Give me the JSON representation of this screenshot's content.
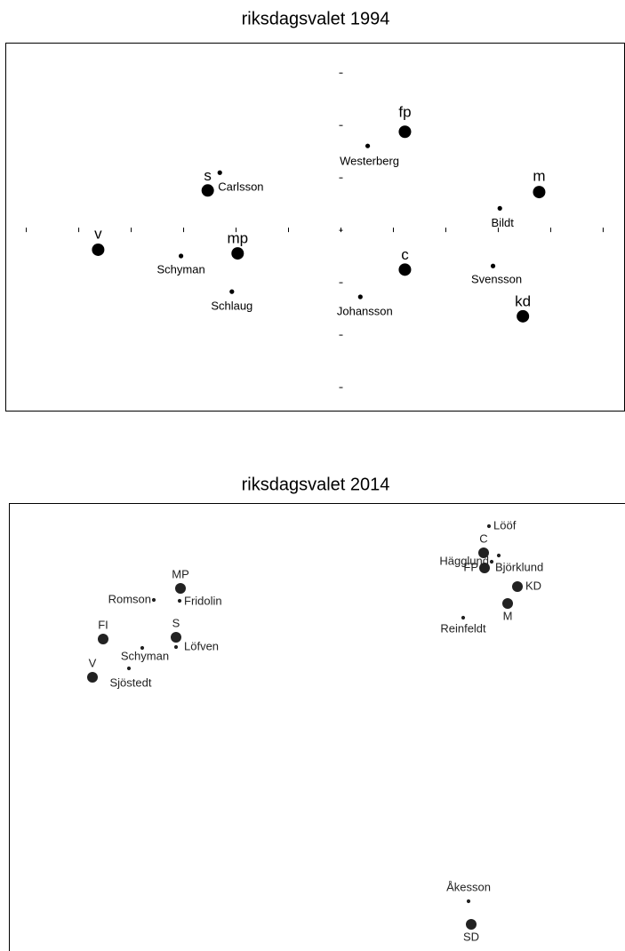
{
  "chart_data": [
    {
      "type": "scatter",
      "title": "riksdagsvalet 1994",
      "xlim": [
        -6.4,
        5.4
      ],
      "ylim": [
        -3.44,
        3.58
      ],
      "xticks": [
        -6,
        -5,
        -4,
        -3,
        -2,
        -1,
        0,
        1,
        2,
        3,
        4,
        5
      ],
      "yticks": [
        -3,
        -2,
        -1,
        0,
        1,
        2,
        3
      ],
      "parties": {
        "labels": [
          "v",
          "s",
          "mp",
          "fp",
          "m",
          "c",
          "kd"
        ],
        "x": [
          -4.63,
          -2.54,
          -1.97,
          1.22,
          3.78,
          1.22,
          3.47
        ],
        "y": [
          -0.37,
          0.76,
          -0.44,
          1.88,
          0.73,
          -0.75,
          -1.64
        ]
      },
      "leaders": {
        "labels": [
          "Carlsson",
          "Schyman",
          "Schlaug",
          "Westerberg",
          "Bildt",
          "Svensson",
          "Johansson"
        ],
        "x": [
          -2.31,
          -3.05,
          -2.08,
          0.51,
          3.03,
          2.9,
          0.37
        ],
        "y": [
          1.1,
          -0.49,
          -1.17,
          1.61,
          0.42,
          -0.68,
          -1.27
        ]
      }
    },
    {
      "type": "scatter",
      "title": "riksdagsvalet 2014",
      "xlim": [
        0,
        69.3
      ],
      "ylim": [
        0,
        50.4
      ],
      "parties": {
        "labels": [
          "MP",
          "S",
          "FI",
          "V",
          "C",
          "FP",
          "KD",
          "M",
          "SD"
        ],
        "x": [
          19.3,
          18.8,
          10.6,
          9.4,
          53.4,
          53.5,
          57.2,
          56.1,
          52.0
        ],
        "y": [
          40.8,
          35.3,
          35.1,
          30.8,
          44.8,
          43.1,
          41.0,
          39.1,
          3.0
        ]
      },
      "leaders": {
        "labels": [
          "Romson",
          "Fridolin",
          "Löfven",
          "Schyman",
          "Sjöstedt",
          "Lööf",
          "Björklund",
          "Hägglund",
          "Reinfeldt",
          "Åkesson"
        ],
        "x": [
          16.3,
          19.2,
          18.8,
          15.0,
          13.5,
          54.0,
          55.1,
          54.3,
          51.1,
          51.7
        ],
        "y": [
          39.5,
          39.4,
          34.2,
          34.1,
          31.8,
          47.8,
          44.5,
          43.8,
          37.5,
          5.6
        ]
      }
    }
  ]
}
